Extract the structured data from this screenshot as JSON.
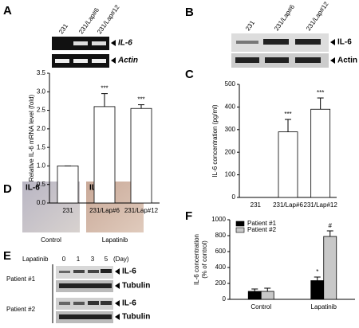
{
  "panels": [
    "A",
    "B",
    "C",
    "D",
    "E",
    "F"
  ],
  "gel_A": {
    "lanes": [
      "231",
      "231/Lap#6",
      "231/Lap#12"
    ],
    "markers": [
      "IL-6",
      "Actin"
    ]
  },
  "blot_B": {
    "lanes": [
      "231",
      "231/Lap#6",
      "231/Lap#12"
    ],
    "markers": [
      "IL-6",
      "Actin"
    ]
  },
  "ihc_D": {
    "stain": "IL-6",
    "conditions": [
      "Control",
      "Lapatinib"
    ]
  },
  "blot_E": {
    "treatment": "Lapatinib",
    "days": [
      "0",
      "1",
      "3",
      "5"
    ],
    "unit": "(Day)",
    "patients": [
      "Patient #1",
      "Patient #2"
    ],
    "markers": [
      "IL-6",
      "Tubulin"
    ]
  },
  "chart_data": [
    {
      "type": "bar",
      "ylabel": [
        "Relative IL-6 mRNA level (fold)"
      ],
      "categories": [
        "231",
        "231/Lap#6",
        "231/Lap#12"
      ],
      "values": [
        1.0,
        2.6,
        2.55
      ],
      "errors": [
        0,
        0.35,
        0.1
      ],
      "color": "#ffffff",
      "ylim": [
        0,
        3.5
      ],
      "yticks": [
        {
          "value": 0,
          "label": "0.0"
        },
        0.5,
        {
          "value": 1,
          "label": "1.0"
        },
        1.5,
        {
          "value": 2,
          "label": "2.0"
        },
        2.5,
        {
          "value": 3,
          "label": "3.0"
        },
        3.5
      ],
      "annotations": [
        {
          "text": "***",
          "x": "231/Lap#6"
        },
        {
          "text": "***",
          "x": "231/Lap#12"
        }
      ]
    },
    {
      "type": "bar",
      "ylabel": [
        "IL-6 concentration (pg/ml)"
      ],
      "categories": [
        "231",
        "231/Lap#6",
        "231/Lap#12"
      ],
      "values": [
        0,
        290,
        390
      ],
      "errors": [
        0,
        55,
        50
      ],
      "color": "#ffffff",
      "ylim": [
        0,
        500
      ],
      "yticks": [
        0,
        100,
        200,
        300,
        400,
        500
      ],
      "annotations": [
        {
          "text": "***",
          "x": "231/Lap#6"
        },
        {
          "text": "***",
          "x": "231/Lap#12"
        }
      ]
    },
    {
      "type": "bar",
      "ylabel": [
        "IL-6 concentration",
        "(% of control)"
      ],
      "categories": [
        "Control",
        "Lapatinib"
      ],
      "series": [
        {
          "name": "Patient #1",
          "color": "#000000",
          "values": [
            100,
            235
          ],
          "errors": [
            30,
            45
          ]
        },
        {
          "name": "Patient #2",
          "color": "#c8c8c8",
          "values": [
            100,
            790
          ],
          "errors": [
            40,
            70
          ]
        }
      ],
      "ylim": [
        0,
        1000
      ],
      "yticks": [
        0,
        200,
        400,
        600,
        800,
        1000
      ],
      "legend": "upper left",
      "annotations": [
        {
          "text": "*",
          "x": "Lapatinib",
          "series": "Patient #1"
        },
        {
          "text": "#",
          "x": "Lapatinib",
          "series": "Patient #2"
        }
      ]
    }
  ]
}
